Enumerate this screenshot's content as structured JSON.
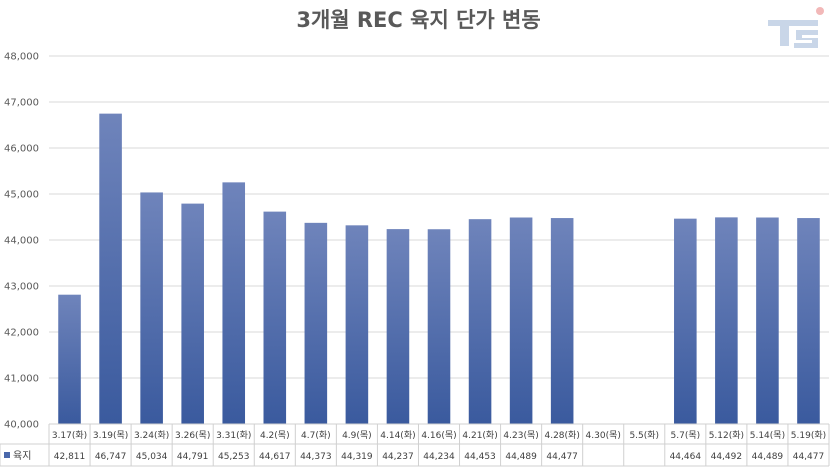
{
  "chart_data": {
    "type": "bar",
    "title": "3개월 REC 육지 단가 변동",
    "categories": [
      "3.17(화)",
      "3.19(목)",
      "3.24(화)",
      "3.26(목)",
      "3.31(화)",
      "4.2(목)",
      "4.7(화)",
      "4.9(목)",
      "4.14(화)",
      "4.16(목)",
      "4.21(화)",
      "4.23(목)",
      "4.28(화)",
      "4.30(목)",
      "5.5(화)",
      "5.7(목)",
      "5.12(화)",
      "5.14(목)",
      "5.19(화)"
    ],
    "series": [
      {
        "name": "육지",
        "values": [
          42811,
          46747,
          45034,
          44791,
          45253,
          44617,
          44373,
          44319,
          44237,
          44234,
          44453,
          44489,
          44477,
          null,
          null,
          44464,
          44492,
          44489,
          44477
        ],
        "labels": [
          "42,811",
          "46,747",
          "45,034",
          "44,791",
          "45,253",
          "44,617",
          "44,373",
          "44,319",
          "44,237",
          "44,234",
          "44,453",
          "44,489",
          "44,477",
          "",
          "",
          "44,464",
          "44,492",
          "44,489",
          "44,477"
        ]
      }
    ],
    "ylim": [
      40000,
      48000
    ],
    "yticks": [
      40000,
      41000,
      42000,
      43000,
      44000,
      45000,
      46000,
      47000,
      48000
    ],
    "ytick_labels": [
      "40,000",
      "41,000",
      "42,000",
      "43,000",
      "44,000",
      "45,000",
      "46,000",
      "47,000",
      "48,000"
    ],
    "xlabel": "",
    "ylabel": "",
    "grid": true,
    "legend_position": "data-table",
    "colors": {
      "bar_top": "#6f84bb",
      "bar_bottom": "#3a5a9e",
      "legend_marker": "#4a68ab",
      "grid": "#d9d9d9"
    }
  },
  "logo": {
    "text": "TS"
  }
}
